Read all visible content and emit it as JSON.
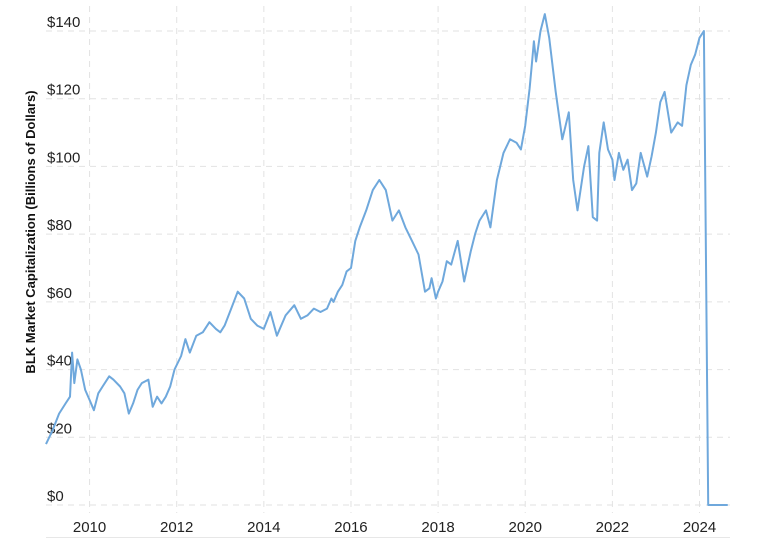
{
  "chart_data": {
    "type": "line",
    "title": "",
    "xlabel": "",
    "ylabel": "BLK Market Capitalization (Billions of Dollars)",
    "xlim": [
      2009.0,
      2024.7
    ],
    "ylim": [
      0,
      145
    ],
    "yticks": [
      0,
      20,
      40,
      60,
      80,
      100,
      120,
      140
    ],
    "ytick_labels": [
      "$0",
      "$20",
      "$40",
      "$60",
      "$80",
      "$100",
      "$120",
      "$140"
    ],
    "xticks": [
      2010,
      2012,
      2014,
      2016,
      2018,
      2020,
      2022,
      2024
    ],
    "xtick_labels": [
      "2010",
      "2012",
      "2014",
      "2016",
      "2018",
      "2020",
      "2022",
      "2024"
    ],
    "grid": true,
    "line_color": "#6fa8dc",
    "series": [
      {
        "name": "",
        "x": [
          2009.0,
          2009.15,
          2009.3,
          2009.45,
          2009.55,
          2009.6,
          2009.65,
          2009.72,
          2009.8,
          2009.9,
          2010.0,
          2010.1,
          2010.2,
          2010.3,
          2010.45,
          2010.55,
          2010.7,
          2010.8,
          2010.9,
          2011.0,
          2011.1,
          2011.2,
          2011.35,
          2011.45,
          2011.55,
          2011.65,
          2011.75,
          2011.85,
          2011.95,
          2012.1,
          2012.2,
          2012.3,
          2012.45,
          2012.6,
          2012.75,
          2012.9,
          2013.0,
          2013.1,
          2013.25,
          2013.4,
          2013.55,
          2013.7,
          2013.85,
          2014.0,
          2014.15,
          2014.3,
          2014.5,
          2014.7,
          2014.85,
          2015.0,
          2015.15,
          2015.3,
          2015.45,
          2015.55,
          2015.6,
          2015.7,
          2015.8,
          2015.9,
          2016.0,
          2016.1,
          2016.2,
          2016.35,
          2016.5,
          2016.65,
          2016.8,
          2016.95,
          2017.1,
          2017.25,
          2017.4,
          2017.55,
          2017.7,
          2017.8,
          2017.85,
          2017.95,
          2018.0,
          2018.1,
          2018.2,
          2018.3,
          2018.45,
          2018.6,
          2018.75,
          2018.85,
          2018.95,
          2019.1,
          2019.2,
          2019.35,
          2019.5,
          2019.65,
          2019.8,
          2019.9,
          2020.0,
          2020.1,
          2020.15,
          2020.2,
          2020.25,
          2020.35,
          2020.45,
          2020.55,
          2020.7,
          2020.85,
          2021.0,
          2021.1,
          2021.2,
          2021.35,
          2021.45,
          2021.55,
          2021.65,
          2021.7,
          2021.8,
          2021.9,
          2022.0,
          2022.05,
          2022.15,
          2022.25,
          2022.35,
          2022.45,
          2022.55,
          2022.65,
          2022.8,
          2022.9,
          2023.0,
          2023.1,
          2023.2,
          2023.35,
          2023.5,
          2023.6,
          2023.7,
          2023.8,
          2023.9,
          2024.0,
          2024.1,
          2024.2,
          2024.3,
          2024.4,
          2024.5,
          2024.6,
          2024.65
        ],
        "y": [
          18,
          22,
          27,
          30,
          32,
          45,
          36,
          43,
          40,
          34,
          31,
          28,
          33,
          35,
          38,
          37,
          35,
          33,
          27,
          30,
          34,
          36,
          37,
          29,
          32,
          30,
          32,
          35,
          40,
          44,
          49,
          45,
          50,
          51,
          54,
          52,
          51,
          53,
          58,
          63,
          61,
          55,
          53,
          52,
          57,
          50,
          56,
          59,
          55,
          56,
          58,
          57,
          58,
          61,
          60,
          63,
          65,
          69,
          70,
          78,
          82,
          87,
          93,
          96,
          93,
          84,
          87,
          82,
          78,
          74,
          63,
          64,
          67,
          61,
          63,
          66,
          72,
          71,
          78,
          66,
          75,
          80,
          84,
          87,
          82,
          96,
          104,
          108,
          107,
          105,
          112,
          123,
          130,
          137,
          131,
          140,
          145,
          138,
          122,
          108,
          116,
          96,
          87,
          100,
          106,
          85,
          84,
          104,
          113,
          105,
          102,
          96,
          104,
          99,
          102,
          93,
          95,
          104,
          97,
          103,
          110,
          119,
          122,
          110,
          113,
          112,
          124,
          130,
          133,
          138,
          140,
          0,
          0,
          0,
          0,
          0,
          0
        ]
      }
    ]
  }
}
